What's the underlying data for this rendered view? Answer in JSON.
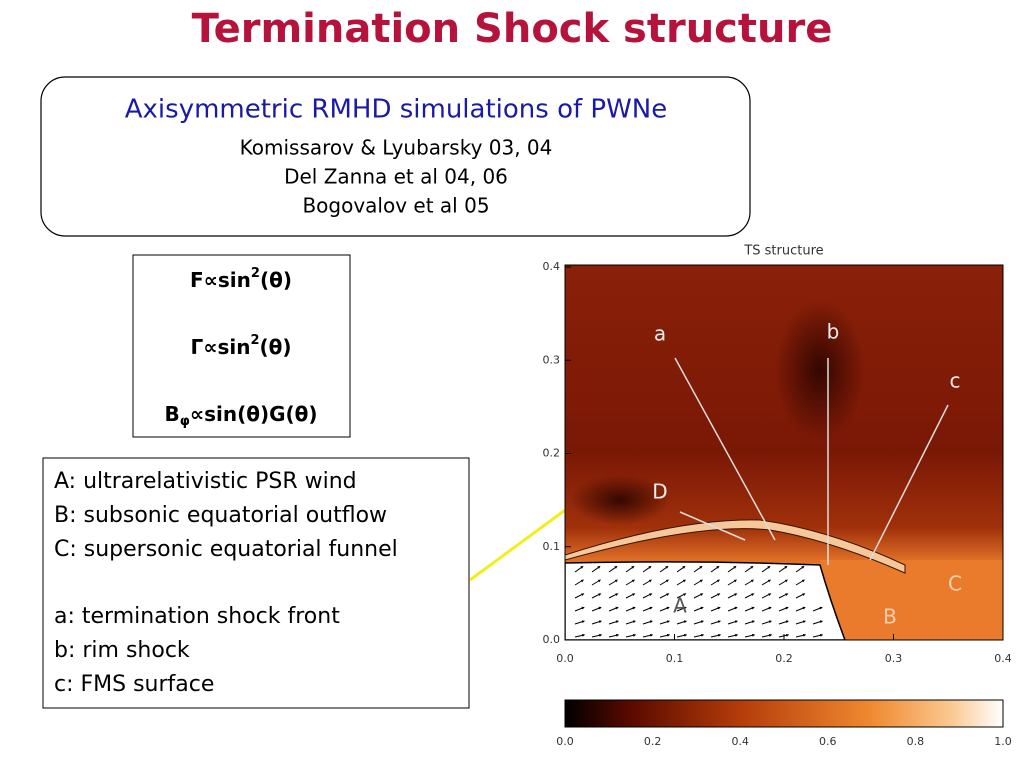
{
  "header": {
    "title": "Termination Shock structure"
  },
  "references": {
    "heading": "Axisymmetric RMHD simulations of PWNe",
    "lines": [
      "Komissarov & Lyubarsky 03, 04",
      "Del Zanna et al 04, 06",
      "Bogovalov et al 05"
    ]
  },
  "formulas": [
    [
      {
        "text": "F∝sin"
      },
      {
        "sup": "2"
      },
      {
        "text": "(θ)"
      }
    ],
    [
      {
        "text": "Γ∝sin"
      },
      {
        "sup": "2"
      },
      {
        "text": "(θ)"
      }
    ],
    [
      {
        "text": "B"
      },
      {
        "sub": "φ"
      },
      {
        "text": "∝sin(θ)G(θ)"
      }
    ]
  ],
  "legend": {
    "regions": [
      "A: ultrarelativistic PSR wind",
      "B: subsonic equatorial outflow",
      "C: supersonic equatorial funnel"
    ],
    "surfaces": [
      "a: termination shock front",
      "b: rim shock",
      "c: FMS surface"
    ]
  },
  "figure": {
    "title": "TS structure",
    "x_ticks": [
      "0.0",
      "0.1",
      "0.2",
      "0.3",
      "0.4"
    ],
    "y_ticks": [
      "0.0",
      "0.1",
      "0.2",
      "0.3",
      "0.4"
    ],
    "colorbar_ticks": [
      "0.0",
      "0.2",
      "0.4",
      "0.6",
      "0.8",
      "1.0"
    ],
    "labels": [
      "a",
      "b",
      "c",
      "D",
      "A",
      "B",
      "C"
    ]
  }
}
